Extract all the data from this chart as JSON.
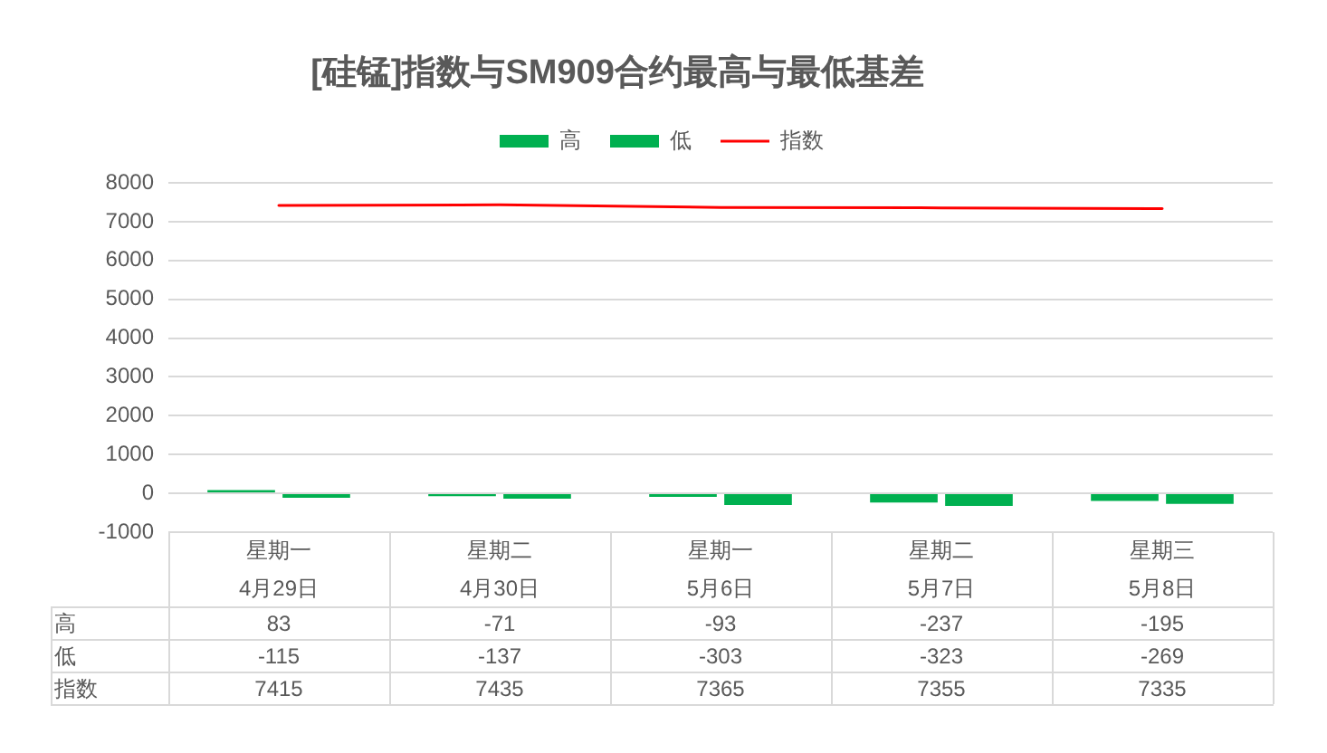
{
  "chart_data": {
    "type": "bar",
    "title": "[硅锰]指数与SM909合约最高与最低基差",
    "categories": [
      "星期一\n4月29日",
      "星期二\n4月30日",
      "星期一\n5月6日",
      "星期二\n5月7日",
      "星期三\n5月8日"
    ],
    "series": [
      {
        "name": "高",
        "color": "#00b050",
        "values": [
          83,
          -71,
          -93,
          -237,
          -195
        ]
      },
      {
        "name": "低",
        "color": "#00b050",
        "values": [
          -115,
          -137,
          -303,
          -323,
          -269
        ]
      },
      {
        "name": "指数",
        "type": "line",
        "color": "#ff0000",
        "values": [
          7415,
          7435,
          7365,
          7355,
          7335
        ]
      }
    ],
    "ylim": [
      -1000,
      8000
    ],
    "yticks": [
      -1000,
      0,
      1000,
      2000,
      3000,
      4000,
      5000,
      6000,
      7000,
      8000
    ],
    "grid": "y",
    "legend": "top",
    "data_labels": true,
    "marker": "none"
  }
}
